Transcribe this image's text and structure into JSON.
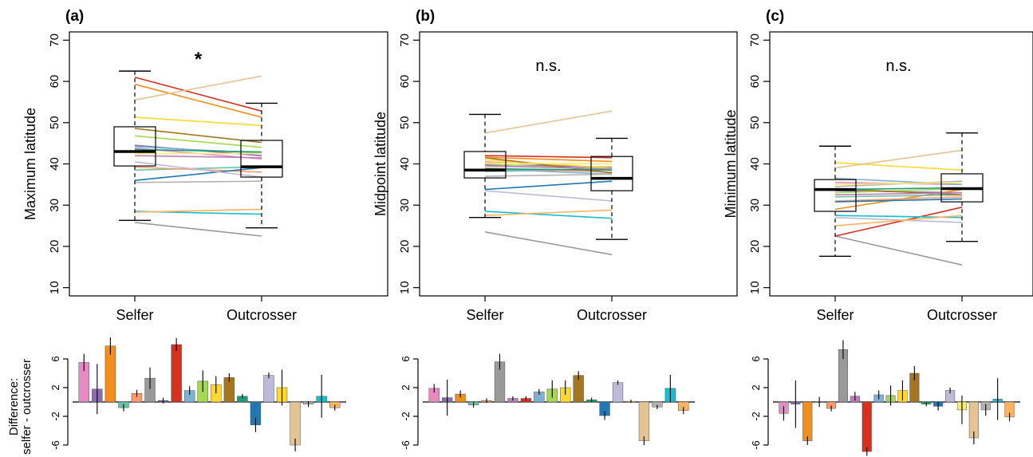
{
  "chart_data": [
    {
      "type": "box",
      "panel": "(a)",
      "ylabel": "Maximum latitude",
      "significance": "*",
      "categories": [
        "Selfer",
        "Outcrosser"
      ],
      "ylim": [
        8,
        72
      ],
      "yticks": [
        10,
        20,
        30,
        40,
        50,
        60,
        70
      ],
      "boxes": [
        {
          "category": "Selfer",
          "whisker_low": 26.3,
          "q1": 39.5,
          "median": 43.0,
          "q3": 49.0,
          "whisker_high": 62.5
        },
        {
          "category": "Outcrosser",
          "whisker_low": 24.5,
          "q1": 36.8,
          "median": 39.3,
          "q3": 45.7,
          "whisker_high": 54.7
        }
      ],
      "pairs": [
        {
          "color": "#E78AC3",
          "values": [
            43.8,
            41.2
          ]
        },
        {
          "color": "#8C6BB1",
          "values": [
            44.5,
            42.0
          ]
        },
        {
          "color": "#F28E1E",
          "values": [
            59.3,
            51.3
          ]
        },
        {
          "color": "#66C2A5",
          "values": [
            38.5,
            39.3
          ]
        },
        {
          "color": "#FB9A6B",
          "values": [
            39.2,
            38.0
          ]
        },
        {
          "color": "#A6D854",
          "values": [
            46.8,
            44.0
          ]
        },
        {
          "color": "#999999",
          "values": [
            25.8,
            22.5
          ]
        },
        {
          "color": "#D7301F",
          "values": [
            61.0,
            52.8
          ]
        },
        {
          "color": "#80B1D3",
          "values": [
            44.2,
            42.6
          ]
        },
        {
          "color": "#FFD92F",
          "values": [
            51.3,
            49.3
          ]
        },
        {
          "color": "#A6761D",
          "values": [
            48.6,
            45.2
          ]
        },
        {
          "color": "#1B9E77",
          "values": [
            43.5,
            42.9
          ]
        },
        {
          "color": "#1F78B4",
          "values": [
            36.0,
            39.1
          ]
        },
        {
          "color": "#BEBADA",
          "values": [
            40.5,
            36.8
          ]
        },
        {
          "color": "#E5C494",
          "values": [
            55.5,
            61.3
          ]
        },
        {
          "color": "#B3B3B3",
          "values": [
            35.5,
            35.8
          ]
        },
        {
          "color": "#17BECF",
          "values": [
            28.5,
            27.8
          ]
        },
        {
          "color": "#FDB462",
          "values": [
            28.3,
            29.0
          ]
        },
        {
          "color": "#FFED6F",
          "values": [
            42.5,
            42.5
          ]
        },
        {
          "color": "#BC80BD",
          "values": [
            42.0,
            41.5
          ]
        }
      ]
    },
    {
      "type": "box",
      "panel": "(b)",
      "ylabel": "Midpoint latitude",
      "significance": "n.s.",
      "categories": [
        "Selfer",
        "Outcrosser"
      ],
      "ylim": [
        8,
        72
      ],
      "yticks": [
        10,
        20,
        30,
        40,
        50,
        60,
        70
      ],
      "boxes": [
        {
          "category": "Selfer",
          "whisker_low": 27.0,
          "q1": 36.6,
          "median": 38.5,
          "q3": 43.0,
          "whisker_high": 52.0
        },
        {
          "category": "Outcrosser",
          "whisker_low": 21.7,
          "q1": 33.5,
          "median": 36.5,
          "q3": 41.8,
          "whisker_high": 46.2
        }
      ],
      "pairs": [
        {
          "color": "#E78AC3",
          "values": [
            40.5,
            39.0
          ]
        },
        {
          "color": "#8C6BB1",
          "values": [
            39.8,
            39.2
          ]
        },
        {
          "color": "#F28E1E",
          "values": [
            41.6,
            40.6
          ]
        },
        {
          "color": "#66C2A5",
          "values": [
            38.2,
            38.6
          ]
        },
        {
          "color": "#FB9A6B",
          "values": [
            39.0,
            38.0
          ]
        },
        {
          "color": "#A6D854",
          "values": [
            40.0,
            38.5
          ]
        },
        {
          "color": "#999999",
          "values": [
            23.5,
            18.0
          ]
        },
        {
          "color": "#D7301F",
          "values": [
            42.0,
            41.5
          ]
        },
        {
          "color": "#80B1D3",
          "values": [
            38.8,
            37.5
          ]
        },
        {
          "color": "#FFD92F",
          "values": [
            41.0,
            39.0
          ]
        },
        {
          "color": "#A6761D",
          "values": [
            41.5,
            37.8
          ]
        },
        {
          "color": "#1B9E77",
          "values": [
            38.8,
            38.5
          ]
        },
        {
          "color": "#1F78B4",
          "values": [
            33.8,
            35.8
          ]
        },
        {
          "color": "#BEBADA",
          "values": [
            33.5,
            31.0
          ]
        },
        {
          "color": "#E5C494",
          "values": [
            47.5,
            52.8
          ]
        },
        {
          "color": "#B3B3B3",
          "values": [
            37.0,
            37.5
          ]
        },
        {
          "color": "#17BECF",
          "values": [
            28.5,
            26.8
          ]
        },
        {
          "color": "#FDB462",
          "values": [
            27.5,
            28.8
          ]
        },
        {
          "color": "#FFED6F",
          "values": [
            40.2,
            40.0
          ]
        },
        {
          "color": "#BC80BD",
          "values": [
            39.5,
            38.8
          ]
        }
      ]
    },
    {
      "type": "box",
      "panel": "(c)",
      "ylabel": "Minimum latitude",
      "significance": "n.s.",
      "categories": [
        "Selfer",
        "Outcrosser"
      ],
      "ylim": [
        8,
        72
      ],
      "yticks": [
        10,
        20,
        30,
        40,
        50,
        60,
        70
      ],
      "boxes": [
        {
          "category": "Selfer",
          "whisker_low": 17.6,
          "q1": 28.5,
          "median": 33.8,
          "q3": 36.2,
          "whisker_high": 44.3
        },
        {
          "category": "Outcrosser",
          "whisker_low": 21.2,
          "q1": 30.8,
          "median": 34.0,
          "q3": 37.6,
          "whisker_high": 47.5
        }
      ],
      "pairs": [
        {
          "color": "#E78AC3",
          "values": [
            35.5,
            35.0
          ]
        },
        {
          "color": "#8C6BB1",
          "values": [
            33.5,
            33.0
          ]
        },
        {
          "color": "#F28E1E",
          "values": [
            29.0,
            33.8
          ]
        },
        {
          "color": "#66C2A5",
          "values": [
            32.0,
            32.5
          ]
        },
        {
          "color": "#FB9A6B",
          "values": [
            31.0,
            32.0
          ]
        },
        {
          "color": "#A6D854",
          "values": [
            33.0,
            34.0
          ]
        },
        {
          "color": "#999999",
          "values": [
            22.5,
            15.5
          ]
        },
        {
          "color": "#D7301F",
          "values": [
            22.5,
            29.5
          ]
        },
        {
          "color": "#80B1D3",
          "values": [
            36.5,
            35.0
          ]
        },
        {
          "color": "#FFD92F",
          "values": [
            40.3,
            38.5
          ]
        },
        {
          "color": "#A6761D",
          "values": [
            34.0,
            32.5
          ]
        },
        {
          "color": "#1B9E77",
          "values": [
            33.8,
            34.2
          ]
        },
        {
          "color": "#1F78B4",
          "values": [
            30.8,
            31.5
          ]
        },
        {
          "color": "#BEBADA",
          "values": [
            27.0,
            25.8
          ]
        },
        {
          "color": "#E5C494",
          "values": [
            39.0,
            43.3
          ]
        },
        {
          "color": "#B3B3B3",
          "values": [
            34.5,
            35.8
          ]
        },
        {
          "color": "#17BECF",
          "values": [
            27.5,
            27.0
          ]
        },
        {
          "color": "#FDB462",
          "values": [
            25.0,
            27.5
          ]
        },
        {
          "color": "#FFED6F",
          "values": [
            35.0,
            35.5
          ]
        },
        {
          "color": "#BC80BD",
          "values": [
            32.5,
            33.0
          ]
        }
      ]
    },
    {
      "type": "bar",
      "panel": "(a)",
      "ylabel": "Difference:\nselfer - outcrosser",
      "ylim": [
        -8,
        8
      ],
      "yticks": [
        6,
        2,
        -2,
        -6
      ],
      "colors": [
        "#E78AC3",
        "#8C6BB1",
        "#F28E1E",
        "#66C2A5",
        "#FB9A6B",
        "#999999",
        "#6A51A3",
        "#D7301F",
        "#80B1D3",
        "#A6D854",
        "#FFD92F",
        "#A6761D",
        "#1B9E77",
        "#1F78B4",
        "#BEBADA",
        "#FFD92F",
        "#E5C494",
        "#B3B3B3",
        "#17BECF",
        "#FDB462"
      ],
      "values": [
        5.5,
        1.8,
        7.8,
        -0.8,
        1.2,
        3.3,
        0.2,
        8.0,
        1.6,
        2.9,
        2.4,
        3.4,
        0.8,
        -3.2,
        3.7,
        2.0,
        -6.0,
        -0.3,
        0.8,
        -0.8
      ],
      "errors": [
        1.2,
        3.5,
        1.2,
        0.5,
        0.5,
        1.5,
        0.4,
        0.9,
        0.6,
        1.5,
        1.2,
        0.6,
        0.3,
        1.0,
        0.4,
        2.5,
        0.9,
        0.4,
        3.0,
        0.4
      ]
    },
    {
      "type": "bar",
      "panel": "(b)",
      "ylabel": "",
      "ylim": [
        -8,
        8
      ],
      "yticks": [
        6,
        2,
        -2,
        -6
      ],
      "colors": [
        "#E78AC3",
        "#8C6BB1",
        "#F28E1E",
        "#66C2A5",
        "#FB9A6B",
        "#999999",
        "#BC80BD",
        "#D7301F",
        "#80B1D3",
        "#A6D854",
        "#FFD92F",
        "#A6761D",
        "#1B9E77",
        "#1F78B4",
        "#BEBADA",
        "#FFED6F",
        "#E5C494",
        "#B3B3B3",
        "#17BECF",
        "#FDB462"
      ],
      "values": [
        1.9,
        0.6,
        1.1,
        -0.4,
        0.2,
        5.6,
        0.5,
        0.5,
        1.4,
        1.8,
        2.0,
        3.7,
        0.3,
        -1.9,
        2.7,
        0.1,
        -5.4,
        -0.7,
        1.9,
        -1.2
      ],
      "errors": [
        0.6,
        2.5,
        0.5,
        0.4,
        0.3,
        1.1,
        0.3,
        0.3,
        0.4,
        1.2,
        1.0,
        0.6,
        0.3,
        0.6,
        0.3,
        0.2,
        0.6,
        0.3,
        1.9,
        0.5
      ]
    },
    {
      "type": "bar",
      "panel": "(c)",
      "ylabel": "",
      "ylim": [
        -8,
        8
      ],
      "yticks": [
        6,
        2,
        -2,
        -6
      ],
      "colors": [
        "#E78AC3",
        "#8C6BB1",
        "#F28E1E",
        "#66C2A5",
        "#FB9A6B",
        "#999999",
        "#BC80BD",
        "#D7301F",
        "#80B1D3",
        "#A6D854",
        "#FFD92F",
        "#A6761D",
        "#1B9E77",
        "#1F78B4",
        "#BEBADA",
        "#FFED6F",
        "#E5C494",
        "#B3B3B3",
        "#17BECF",
        "#FDB462"
      ],
      "values": [
        -1.6,
        -0.3,
        -5.4,
        0.0,
        -0.9,
        7.3,
        0.8,
        -6.9,
        1.0,
        0.9,
        1.6,
        4.0,
        -0.3,
        -0.6,
        1.6,
        -1.1,
        -5.0,
        -1.1,
        0.4,
        -2.1
      ],
      "errors": [
        1.0,
        3.3,
        0.6,
        0.7,
        0.4,
        1.3,
        0.6,
        0.6,
        0.6,
        1.4,
        1.4,
        1.0,
        0.3,
        0.6,
        0.4,
        2.0,
        0.9,
        0.8,
        2.9,
        0.6
      ]
    }
  ],
  "xlabels": [
    "Selfer",
    "Outcrosser"
  ]
}
